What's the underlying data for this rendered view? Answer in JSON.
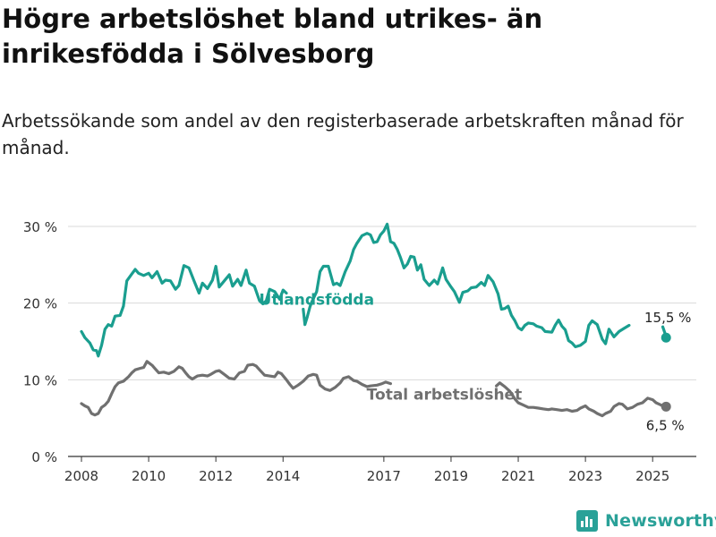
{
  "title": "Högre arbetslöshet bland utrikes- än inrikesfödda i Sölvesborg",
  "subtitle": "Arbetssökande som andel av den registerbaserade arbetskraften månad för månad.",
  "brand": {
    "name": "Newsworthy",
    "icon": "bar-chart-logo-icon",
    "color": "#2aa198"
  },
  "chart_data": {
    "type": "line",
    "xlim": [
      2007.6,
      2026.3
    ],
    "ylim": [
      0,
      30
    ],
    "y_ticks": [
      0,
      10,
      20,
      30
    ],
    "y_tick_labels": [
      "0 %",
      "10 %",
      "20 %",
      "30 %"
    ],
    "x_ticks": [
      2008,
      2010,
      2012,
      2014,
      2017,
      2019,
      2021,
      2023,
      2025
    ],
    "x_tick_labels": [
      "2008",
      "2010",
      "2012",
      "2014",
      "2017",
      "2019",
      "2021",
      "2023",
      "2025"
    ],
    "grid": "horizontal",
    "series": [
      {
        "name": "Utlandsfödda",
        "color": "#1a9e8f",
        "end_label": "15,5 %",
        "end_value": 15.5,
        "end_x": 2025.4,
        "points": [
          [
            2008.0,
            16.3
          ],
          [
            2008.1,
            15.5
          ],
          [
            2008.25,
            14.8
          ],
          [
            2008.35,
            13.9
          ],
          [
            2008.45,
            13.8
          ],
          [
            2008.5,
            13.1
          ],
          [
            2008.6,
            14.5
          ],
          [
            2008.7,
            16.6
          ],
          [
            2008.8,
            17.2
          ],
          [
            2008.9,
            17.0
          ],
          [
            2009.0,
            18.3
          ],
          [
            2009.15,
            18.4
          ],
          [
            2009.25,
            19.6
          ],
          [
            2009.35,
            22.9
          ],
          [
            2009.5,
            23.8
          ],
          [
            2009.6,
            24.4
          ],
          [
            2009.7,
            23.9
          ],
          [
            2009.85,
            23.6
          ],
          [
            2010.0,
            23.9
          ],
          [
            2010.1,
            23.3
          ],
          [
            2010.25,
            24.1
          ],
          [
            2010.4,
            22.6
          ],
          [
            2010.5,
            23.0
          ],
          [
            2010.65,
            22.9
          ],
          [
            2010.8,
            21.8
          ],
          [
            2010.9,
            22.3
          ],
          [
            2011.05,
            24.9
          ],
          [
            2011.2,
            24.6
          ],
          [
            2011.35,
            22.9
          ],
          [
            2011.5,
            21.3
          ],
          [
            2011.6,
            22.6
          ],
          [
            2011.75,
            21.9
          ],
          [
            2011.9,
            23.0
          ],
          [
            2012.0,
            24.8
          ],
          [
            2012.1,
            22.1
          ],
          [
            2012.25,
            22.9
          ],
          [
            2012.4,
            23.7
          ],
          [
            2012.5,
            22.2
          ],
          [
            2012.65,
            23.1
          ],
          [
            2012.75,
            22.3
          ],
          [
            2012.9,
            24.3
          ],
          [
            2013.0,
            22.6
          ],
          [
            2013.15,
            22.2
          ],
          [
            2013.3,
            20.3
          ],
          [
            2013.4,
            19.9
          ],
          [
            2013.5,
            20.3
          ],
          [
            2013.6,
            21.8
          ],
          [
            2013.75,
            21.5
          ],
          [
            2013.9,
            20.5
          ],
          [
            2014.0,
            21.7
          ],
          [
            2014.1,
            21.3
          ]
        ],
        "points_2": [
          [
            2014.6,
            19.2
          ],
          [
            2014.65,
            17.2
          ],
          [
            2014.72,
            18.2
          ],
          [
            2014.8,
            19.5
          ],
          [
            2014.85,
            20.1
          ],
          [
            2015.0,
            21.5
          ],
          [
            2015.1,
            24.1
          ],
          [
            2015.2,
            24.8
          ],
          [
            2015.35,
            24.8
          ],
          [
            2015.5,
            22.4
          ],
          [
            2015.6,
            22.6
          ],
          [
            2015.7,
            22.3
          ],
          [
            2015.85,
            24.1
          ],
          [
            2016.0,
            25.5
          ],
          [
            2016.1,
            27.0
          ],
          [
            2016.2,
            27.8
          ],
          [
            2016.35,
            28.8
          ],
          [
            2016.5,
            29.1
          ],
          [
            2016.6,
            28.9
          ],
          [
            2016.7,
            27.9
          ],
          [
            2016.8,
            28.0
          ],
          [
            2016.9,
            28.9
          ],
          [
            2017.0,
            29.4
          ],
          [
            2017.1,
            30.3
          ],
          [
            2017.2,
            28.0
          ],
          [
            2017.3,
            27.8
          ],
          [
            2017.4,
            27.0
          ],
          [
            2017.5,
            25.9
          ],
          [
            2017.6,
            24.6
          ],
          [
            2017.7,
            25.1
          ],
          [
            2017.8,
            26.1
          ],
          [
            2017.9,
            26.0
          ],
          [
            2018.0,
            24.3
          ],
          [
            2018.1,
            25.0
          ],
          [
            2018.2,
            23.1
          ],
          [
            2018.35,
            22.3
          ],
          [
            2018.5,
            23.0
          ],
          [
            2018.6,
            22.5
          ],
          [
            2018.75,
            24.6
          ],
          [
            2018.85,
            23.1
          ],
          [
            2019.0,
            22.1
          ],
          [
            2019.1,
            21.5
          ],
          [
            2019.25,
            20.1
          ],
          [
            2019.35,
            21.4
          ],
          [
            2019.5,
            21.6
          ],
          [
            2019.6,
            22.0
          ],
          [
            2019.75,
            22.1
          ],
          [
            2019.9,
            22.7
          ],
          [
            2020.0,
            22.3
          ],
          [
            2020.1,
            23.6
          ],
          [
            2020.25,
            22.8
          ],
          [
            2020.4,
            21.2
          ],
          [
            2020.5,
            19.2
          ],
          [
            2020.6,
            19.3
          ],
          [
            2020.7,
            19.6
          ],
          [
            2020.8,
            18.4
          ],
          [
            2020.9,
            17.7
          ],
          [
            2021.0,
            16.8
          ],
          [
            2021.1,
            16.5
          ],
          [
            2021.2,
            17.1
          ],
          [
            2021.3,
            17.4
          ],
          [
            2021.45,
            17.3
          ],
          [
            2021.55,
            17.0
          ],
          [
            2021.7,
            16.8
          ],
          [
            2021.8,
            16.3
          ],
          [
            2022.0,
            16.2
          ],
          [
            2022.1,
            17.1
          ],
          [
            2022.2,
            17.8
          ],
          [
            2022.3,
            17.0
          ],
          [
            2022.4,
            16.5
          ],
          [
            2022.5,
            15.1
          ],
          [
            2022.6,
            14.8
          ],
          [
            2022.7,
            14.3
          ],
          [
            2022.85,
            14.5
          ],
          [
            2023.0,
            15.0
          ],
          [
            2023.1,
            17.1
          ],
          [
            2023.2,
            17.7
          ],
          [
            2023.35,
            17.2
          ],
          [
            2023.5,
            15.3
          ],
          [
            2023.6,
            14.7
          ],
          [
            2023.7,
            16.6
          ],
          [
            2023.85,
            15.6
          ],
          [
            2024.0,
            16.3
          ],
          [
            2024.15,
            16.7
          ],
          [
            2024.3,
            17.1
          ]
        ],
        "points_3": [
          [
            2025.3,
            16.9
          ],
          [
            2025.38,
            15.9
          ],
          [
            2025.4,
            15.5
          ]
        ]
      },
      {
        "name": "Total arbetslöshet",
        "color": "#707070",
        "end_label": "6,5 %",
        "end_value": 6.5,
        "end_x": 2025.4,
        "points": [
          [
            2008.0,
            6.9
          ],
          [
            2008.1,
            6.6
          ],
          [
            2008.2,
            6.4
          ],
          [
            2008.3,
            5.6
          ],
          [
            2008.4,
            5.4
          ],
          [
            2008.5,
            5.6
          ],
          [
            2008.6,
            6.4
          ],
          [
            2008.7,
            6.7
          ],
          [
            2008.8,
            7.2
          ],
          [
            2008.9,
            8.2
          ],
          [
            2009.0,
            9.1
          ],
          [
            2009.1,
            9.6
          ],
          [
            2009.25,
            9.8
          ],
          [
            2009.4,
            10.4
          ],
          [
            2009.5,
            10.9
          ],
          [
            2009.6,
            11.3
          ],
          [
            2009.75,
            11.5
          ],
          [
            2009.85,
            11.6
          ],
          [
            2009.95,
            12.4
          ],
          [
            2010.1,
            11.9
          ],
          [
            2010.2,
            11.4
          ],
          [
            2010.3,
            10.9
          ],
          [
            2010.45,
            11.0
          ],
          [
            2010.6,
            10.8
          ],
          [
            2010.75,
            11.1
          ],
          [
            2010.9,
            11.7
          ],
          [
            2011.0,
            11.5
          ],
          [
            2011.1,
            10.9
          ],
          [
            2011.2,
            10.4
          ],
          [
            2011.3,
            10.1
          ],
          [
            2011.45,
            10.5
          ],
          [
            2011.6,
            10.6
          ],
          [
            2011.75,
            10.5
          ],
          [
            2011.85,
            10.7
          ],
          [
            2012.0,
            11.1
          ],
          [
            2012.1,
            11.2
          ],
          [
            2012.25,
            10.7
          ],
          [
            2012.4,
            10.2
          ],
          [
            2012.55,
            10.1
          ],
          [
            2012.7,
            10.9
          ],
          [
            2012.85,
            11.1
          ],
          [
            2012.95,
            11.9
          ],
          [
            2013.1,
            12.0
          ],
          [
            2013.2,
            11.8
          ],
          [
            2013.3,
            11.3
          ],
          [
            2013.45,
            10.6
          ],
          [
            2013.6,
            10.5
          ],
          [
            2013.75,
            10.4
          ],
          [
            2013.85,
            11.0
          ],
          [
            2013.95,
            10.8
          ],
          [
            2014.1,
            10.0
          ],
          [
            2014.2,
            9.4
          ],
          [
            2014.3,
            8.9
          ],
          [
            2014.45,
            9.3
          ],
          [
            2014.6,
            9.8
          ],
          [
            2014.75,
            10.5
          ],
          [
            2014.9,
            10.7
          ],
          [
            2015.0,
            10.6
          ],
          [
            2015.1,
            9.3
          ],
          [
            2015.25,
            8.8
          ],
          [
            2015.4,
            8.6
          ],
          [
            2015.55,
            9.0
          ],
          [
            2015.7,
            9.6
          ],
          [
            2015.8,
            10.2
          ],
          [
            2015.95,
            10.4
          ],
          [
            2016.1,
            9.9
          ],
          [
            2016.2,
            9.8
          ],
          [
            2016.35,
            9.4
          ],
          [
            2016.5,
            9.1
          ],
          [
            2016.6,
            9.2
          ],
          [
            2016.8,
            9.3
          ],
          [
            2016.95,
            9.5
          ],
          [
            2017.05,
            9.7
          ],
          [
            2017.2,
            9.5
          ]
        ],
        "points_2": [
          [
            2020.35,
            9.2
          ],
          [
            2020.45,
            9.6
          ],
          [
            2020.6,
            9.1
          ],
          [
            2020.75,
            8.5
          ],
          [
            2020.9,
            7.5
          ],
          [
            2021.0,
            7.0
          ],
          [
            2021.15,
            6.7
          ],
          [
            2021.3,
            6.4
          ],
          [
            2021.45,
            6.4
          ],
          [
            2021.6,
            6.3
          ],
          [
            2021.75,
            6.2
          ],
          [
            2021.9,
            6.1
          ],
          [
            2022.0,
            6.2
          ],
          [
            2022.15,
            6.1
          ],
          [
            2022.3,
            6.0
          ],
          [
            2022.45,
            6.1
          ],
          [
            2022.6,
            5.9
          ],
          [
            2022.75,
            6.0
          ],
          [
            2022.85,
            6.3
          ],
          [
            2023.0,
            6.6
          ],
          [
            2023.1,
            6.2
          ],
          [
            2023.25,
            5.9
          ],
          [
            2023.35,
            5.6
          ],
          [
            2023.5,
            5.3
          ],
          [
            2023.6,
            5.6
          ],
          [
            2023.75,
            5.9
          ],
          [
            2023.85,
            6.5
          ],
          [
            2024.0,
            6.9
          ],
          [
            2024.1,
            6.8
          ],
          [
            2024.25,
            6.2
          ],
          [
            2024.4,
            6.4
          ],
          [
            2024.55,
            6.8
          ],
          [
            2024.7,
            7.0
          ],
          [
            2024.85,
            7.6
          ],
          [
            2025.0,
            7.4
          ],
          [
            2025.1,
            7.0
          ],
          [
            2025.2,
            6.8
          ],
          [
            2025.3,
            6.6
          ],
          [
            2025.4,
            6.5
          ]
        ]
      }
    ]
  }
}
